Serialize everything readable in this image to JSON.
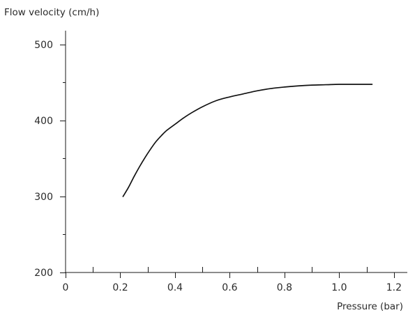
{
  "chart_data": {
    "type": "line",
    "title": "",
    "xlabel": "Pressure (bar)",
    "ylabel": "Flow velocity (cm/h)",
    "xlim": [
      0,
      1.25
    ],
    "ylim": [
      200,
      525
    ],
    "x_ticks_major": [
      0,
      0.2,
      0.4,
      0.6,
      0.8,
      1.0,
      1.2
    ],
    "x_tick_labels": [
      "0",
      "0.2",
      "0.4",
      "0.6",
      "0.8",
      "1.0",
      "1.2"
    ],
    "x_ticks_minor": [
      0.1,
      0.3,
      0.5,
      0.7,
      0.9,
      1.1
    ],
    "y_ticks_major": [
      200,
      300,
      400,
      500
    ],
    "y_tick_labels": [
      "200",
      "300",
      "400",
      "500"
    ],
    "y_ticks_minor": [
      250,
      350,
      450
    ],
    "grid": false,
    "series": [
      {
        "color": "#111111",
        "x": [
          0.21,
          0.23,
          0.25,
          0.27,
          0.29,
          0.31,
          0.33,
          0.35,
          0.37,
          0.4,
          0.43,
          0.46,
          0.5,
          0.55,
          0.6,
          0.65,
          0.7,
          0.75,
          0.8,
          0.85,
          0.9,
          0.95,
          1.0,
          1.05,
          1.12
        ],
        "y": [
          300,
          312,
          326,
          339,
          351,
          362,
          372,
          380,
          387,
          395,
          403,
          410,
          418,
          426,
          431,
          435,
          439,
          442,
          444,
          445.5,
          446.5,
          447,
          447.5,
          447.5,
          447.5
        ]
      }
    ]
  }
}
